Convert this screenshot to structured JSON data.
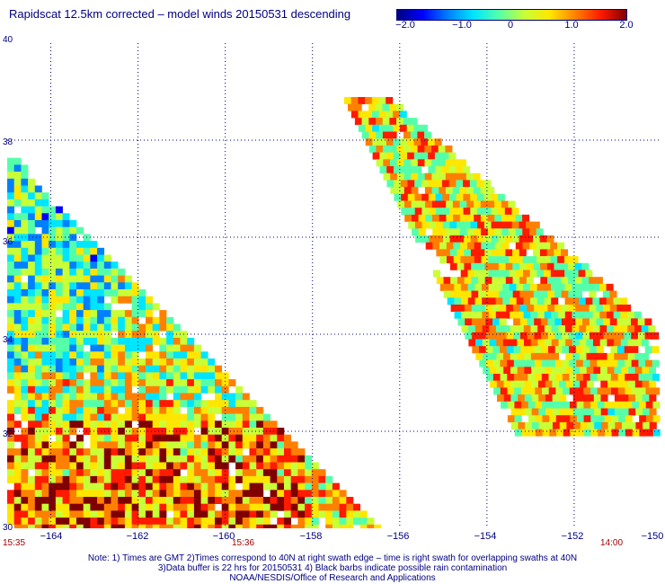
{
  "title": "Rapidscat 12.5km corrected – model winds 20150531 descending",
  "colorbar": {
    "ticks": [
      "−2.0",
      "−1.0",
      "0",
      "1.0",
      "2.0"
    ],
    "min": -2.0,
    "max": 2.0,
    "colors": [
      "#00007f",
      "#0000ff",
      "#0080ff",
      "#00e5ff",
      "#55ffaa",
      "#c8ff37",
      "#ffe600",
      "#ff8000",
      "#ff1a00",
      "#800000"
    ]
  },
  "map": {
    "lat_range": [
      30,
      40
    ],
    "lon_range": [
      -165,
      -150
    ],
    "y_labels": [
      "40",
      "38",
      "36",
      "34",
      "32",
      "30"
    ],
    "x_labels": [
      "−164",
      "−162",
      "−160",
      "−158",
      "−156",
      "−154",
      "−152",
      "−150"
    ],
    "grid": true,
    "grid_lats": [
      38,
      36,
      34,
      32
    ],
    "grid_lons": [
      -164,
      -162,
      -160,
      -158,
      -156,
      -154,
      -152
    ]
  },
  "times": {
    "left": "15:35",
    "middle": "15:36",
    "right": "14:00"
  },
  "notes": [
    "Note: 1) Times are GMT 2)Times correspond to 40N at right swath edge – time is right swath for overlapping swaths at 40N",
    "3)Data buffer is 22 hrs for 20150531 4) Black barbs indicate possible rain contamination",
    "NOAA/NESDIS/Office of Research and Applications"
  ]
}
